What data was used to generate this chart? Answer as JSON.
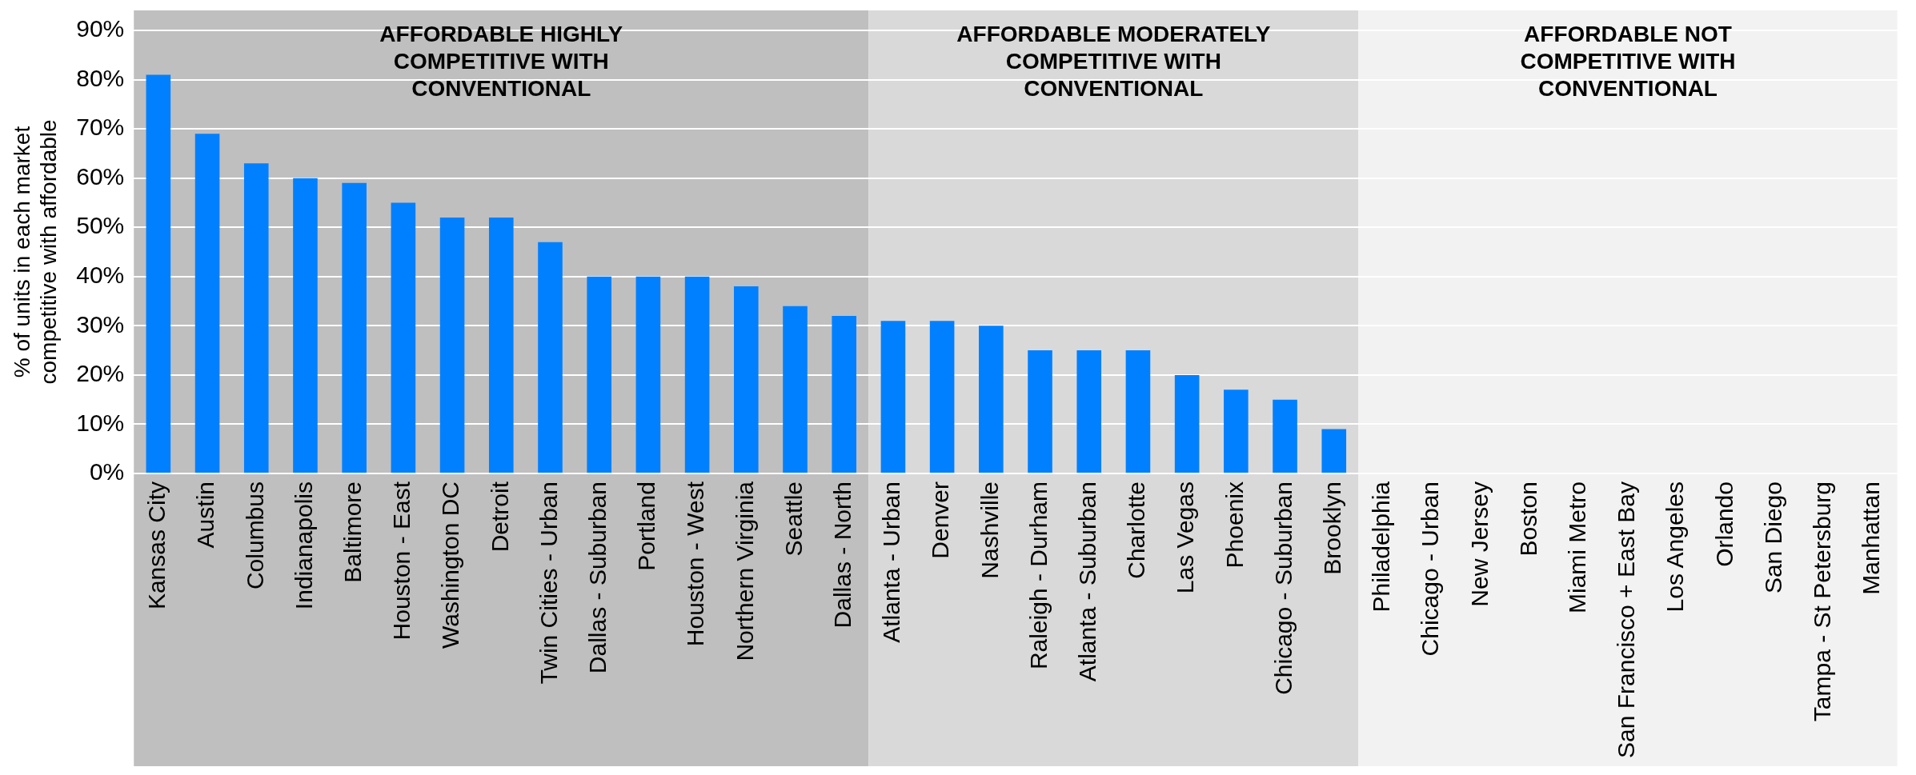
{
  "chart_data": {
    "type": "bar",
    "ylabel": "% of units in each market competitive with affordable",
    "categories": [
      "Kansas City",
      "Austin",
      "Columbus",
      "Indianapolis",
      "Baltimore",
      "Houston - East",
      "Washington DC",
      "Detroit",
      "Twin Cities - Urban",
      "Dallas - Suburban",
      "Portland",
      "Houston - West",
      "Northern Virginia",
      "Seattle",
      "Dallas - North",
      "Atlanta - Urban",
      "Denver",
      "Nashville",
      "Raleigh - Durham",
      "Atlanta - Suburban",
      "Charlotte",
      "Las Vegas",
      "Phoenix",
      "Chicago - Suburban",
      "Brooklyn",
      "Philadelphia",
      "Chicago - Urban",
      "New Jersey",
      "Boston",
      "Miami Metro",
      "San Francisco + East Bay",
      "Los Angeles",
      "Orlando",
      "San Diego",
      "Tampa - St Petersburg",
      "Manhattan"
    ],
    "series": [
      {
        "color": "#0080ff",
        "values": [
          81,
          69,
          63,
          60,
          59,
          55,
          52,
          52,
          47,
          40,
          40,
          40,
          38,
          34,
          32,
          31,
          31,
          30,
          25,
          25,
          25,
          20,
          17,
          15,
          9,
          0,
          0,
          0,
          0,
          0,
          0,
          0,
          0,
          0,
          0,
          0
        ]
      }
    ],
    "ylim": [
      0,
      90
    ],
    "yticks": [
      {
        "value": 0,
        "label": "0%"
      },
      {
        "value": 10,
        "label": "10%"
      },
      {
        "value": 20,
        "label": "20%"
      },
      {
        "value": 30,
        "label": "30%"
      },
      {
        "value": 40,
        "label": "40%"
      },
      {
        "value": 50,
        "label": "50%"
      },
      {
        "value": 60,
        "label": "60%"
      },
      {
        "value": 70,
        "label": "70%"
      },
      {
        "value": 80,
        "label": "80%"
      },
      {
        "value": 90,
        "label": "90%"
      }
    ],
    "grid": "y",
    "bands": [
      {
        "axis": "x",
        "from": "Kansas City",
        "to": "Dallas - North",
        "label": "AFFORDABLE HIGHLY COMPETITIVE WITH CONVENTIONAL",
        "color": "#bfbfbf"
      },
      {
        "axis": "x",
        "from": "Atlanta - Urban",
        "to": "Brooklyn",
        "label": "AFFORDABLE MODERATELY COMPETITIVE WITH CONVENTIONAL",
        "color": "#d9d9d9"
      },
      {
        "axis": "x",
        "from": "Philadelphia",
        "to": "Manhattan",
        "label": "AFFORDABLE NOT COMPETITIVE WITH CONVENTIONAL",
        "color": "#f2f2f2"
      }
    ]
  }
}
